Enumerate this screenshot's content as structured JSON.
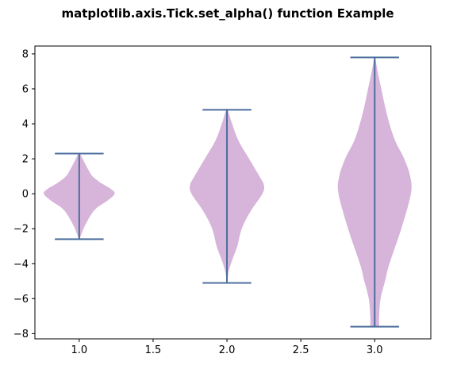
{
  "chart_data": {
    "type": "violin",
    "title": "matplotlib.axis.Tick.set_alpha() function Example",
    "xlabel": "",
    "ylabel": "",
    "xlim": [
      0.7,
      3.38
    ],
    "ylim": [
      -8.3,
      8.45
    ],
    "x_ticks": [
      "1.0",
      "1.5",
      "2.0",
      "2.5",
      "3.0"
    ],
    "y_ticks": [
      "−8",
      "−6",
      "−4",
      "−2",
      "0",
      "2",
      "4",
      "6",
      "8"
    ],
    "grid": false,
    "colors": {
      "body": "#d7b4da",
      "lines": "#4c6e9e"
    },
    "violins": [
      {
        "position": 1.0,
        "min": -2.6,
        "max": 2.3,
        "profile": [
          [
            -2.6,
            0.003
          ],
          [
            -2.3,
            0.015
          ],
          [
            -1.8,
            0.04
          ],
          [
            -1.2,
            0.08
          ],
          [
            -0.8,
            0.12
          ],
          [
            -0.4,
            0.19
          ],
          [
            0.0,
            0.24
          ],
          [
            0.3,
            0.21
          ],
          [
            0.6,
            0.15
          ],
          [
            1.0,
            0.09
          ],
          [
            1.4,
            0.06
          ],
          [
            1.8,
            0.035
          ],
          [
            2.3,
            0.005
          ]
        ]
      },
      {
        "position": 2.0,
        "min": -5.1,
        "max": 4.8,
        "profile": [
          [
            -5.1,
            0.003
          ],
          [
            -4.5,
            0.01
          ],
          [
            -3.8,
            0.035
          ],
          [
            -3.0,
            0.07
          ],
          [
            -2.0,
            0.1
          ],
          [
            -1.0,
            0.16
          ],
          [
            0.0,
            0.24
          ],
          [
            0.5,
            0.25
          ],
          [
            1.0,
            0.22
          ],
          [
            2.0,
            0.15
          ],
          [
            3.0,
            0.08
          ],
          [
            4.0,
            0.035
          ],
          [
            4.8,
            0.005
          ]
        ]
      },
      {
        "position": 3.0,
        "min": -7.6,
        "max": 7.8,
        "profile": [
          [
            -7.6,
            0.03
          ],
          [
            -7.0,
            0.03
          ],
          [
            -6.0,
            0.04
          ],
          [
            -5.0,
            0.07
          ],
          [
            -4.0,
            0.1
          ],
          [
            -2.0,
            0.18
          ],
          [
            0.0,
            0.245
          ],
          [
            1.0,
            0.24
          ],
          [
            2.0,
            0.2
          ],
          [
            3.0,
            0.14
          ],
          [
            4.0,
            0.1
          ],
          [
            5.0,
            0.07
          ],
          [
            6.0,
            0.045
          ],
          [
            7.0,
            0.02
          ],
          [
            7.8,
            0.003
          ]
        ]
      }
    ]
  }
}
